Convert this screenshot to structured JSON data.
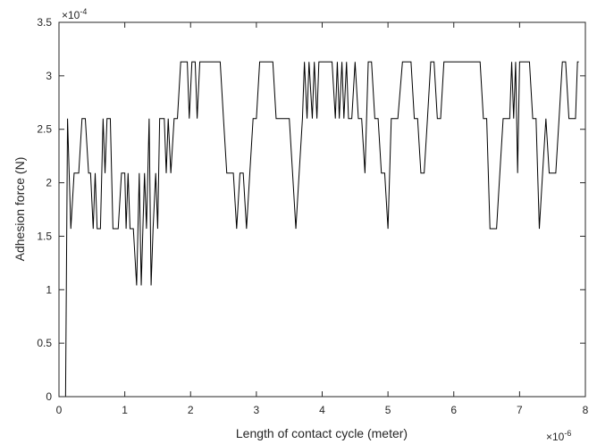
{
  "chart_data": {
    "type": "line",
    "xlabel": "Length of contact cycle (meter)",
    "ylabel": "Adhesion force (N)",
    "x_multiplier": "×10",
    "x_exponent": "-6",
    "y_multiplier": "×10",
    "y_exponent": "-4",
    "xlim": [
      0,
      8
    ],
    "ylim": [
      0,
      3.5
    ],
    "x_ticks": [
      0,
      1,
      2,
      3,
      4,
      5,
      6,
      7,
      8
    ],
    "y_ticks": [
      0,
      0.5,
      1,
      1.5,
      2,
      2.5,
      3,
      3.5
    ],
    "x_tick_labels": [
      "0",
      "1",
      "2",
      "3",
      "4",
      "5",
      "6",
      "7",
      "8"
    ],
    "y_tick_labels": [
      "0",
      "0.5",
      "1",
      "1.5",
      "2",
      "2.5",
      "3",
      "3.5"
    ],
    "grid": false,
    "line_color": "#000000",
    "series": [
      {
        "values": [
          [
            0.1,
            0
          ],
          [
            0.13,
            2.6
          ],
          [
            0.18,
            1.57
          ],
          [
            0.23,
            2.09
          ],
          [
            0.3,
            2.09
          ],
          [
            0.35,
            2.6
          ],
          [
            0.4,
            2.6
          ],
          [
            0.45,
            2.09
          ],
          [
            0.48,
            2.09
          ],
          [
            0.52,
            1.57
          ],
          [
            0.55,
            2.09
          ],
          [
            0.58,
            1.57
          ],
          [
            0.63,
            1.57
          ],
          [
            0.67,
            2.6
          ],
          [
            0.7,
            2.09
          ],
          [
            0.73,
            2.6
          ],
          [
            0.78,
            2.6
          ],
          [
            0.82,
            1.57
          ],
          [
            0.9,
            1.57
          ],
          [
            0.95,
            2.09
          ],
          [
            1.0,
            2.09
          ],
          [
            1.02,
            1.57
          ],
          [
            1.05,
            2.09
          ],
          [
            1.08,
            1.57
          ],
          [
            1.13,
            1.57
          ],
          [
            1.18,
            1.04
          ],
          [
            1.22,
            2.09
          ],
          [
            1.25,
            1.04
          ],
          [
            1.3,
            2.09
          ],
          [
            1.33,
            1.57
          ],
          [
            1.37,
            2.6
          ],
          [
            1.4,
            1.04
          ],
          [
            1.43,
            1.57
          ],
          [
            1.47,
            2.09
          ],
          [
            1.5,
            1.57
          ],
          [
            1.53,
            2.6
          ],
          [
            1.6,
            2.6
          ],
          [
            1.63,
            2.09
          ],
          [
            1.66,
            2.6
          ],
          [
            1.7,
            2.09
          ],
          [
            1.75,
            2.6
          ],
          [
            1.8,
            2.6
          ],
          [
            1.85,
            3.13
          ],
          [
            1.95,
            3.13
          ],
          [
            1.98,
            2.6
          ],
          [
            2.02,
            3.13
          ],
          [
            2.07,
            3.13
          ],
          [
            2.1,
            2.6
          ],
          [
            2.14,
            3.13
          ],
          [
            2.45,
            3.13
          ],
          [
            2.5,
            2.6
          ],
          [
            2.55,
            2.09
          ],
          [
            2.65,
            2.09
          ],
          [
            2.7,
            1.57
          ],
          [
            2.75,
            2.09
          ],
          [
            2.8,
            2.09
          ],
          [
            2.85,
            1.57
          ],
          [
            2.9,
            2.09
          ],
          [
            2.95,
            2.6
          ],
          [
            3.0,
            2.6
          ],
          [
            3.05,
            3.13
          ],
          [
            3.25,
            3.13
          ],
          [
            3.3,
            2.6
          ],
          [
            3.5,
            2.6
          ],
          [
            3.55,
            2.09
          ],
          [
            3.6,
            1.57
          ],
          [
            3.65,
            2.09
          ],
          [
            3.7,
            2.6
          ],
          [
            3.73,
            3.13
          ],
          [
            3.77,
            2.6
          ],
          [
            3.8,
            3.13
          ],
          [
            3.85,
            2.6
          ],
          [
            3.88,
            3.13
          ],
          [
            3.92,
            2.6
          ],
          [
            3.95,
            3.13
          ],
          [
            4.15,
            3.13
          ],
          [
            4.2,
            2.6
          ],
          [
            4.23,
            3.13
          ],
          [
            4.26,
            2.6
          ],
          [
            4.3,
            3.13
          ],
          [
            4.33,
            2.6
          ],
          [
            4.37,
            3.13
          ],
          [
            4.4,
            2.6
          ],
          [
            4.45,
            2.6
          ],
          [
            4.5,
            3.13
          ],
          [
            4.55,
            2.6
          ],
          [
            4.6,
            2.6
          ],
          [
            4.65,
            2.09
          ],
          [
            4.7,
            3.13
          ],
          [
            4.75,
            3.13
          ],
          [
            4.8,
            2.6
          ],
          [
            4.85,
            2.6
          ],
          [
            4.9,
            2.09
          ],
          [
            4.95,
            2.09
          ],
          [
            5.0,
            1.57
          ],
          [
            5.05,
            2.6
          ],
          [
            5.15,
            2.6
          ],
          [
            5.22,
            3.13
          ],
          [
            5.35,
            3.13
          ],
          [
            5.4,
            2.6
          ],
          [
            5.45,
            2.6
          ],
          [
            5.5,
            2.09
          ],
          [
            5.55,
            2.09
          ],
          [
            5.6,
            2.6
          ],
          [
            5.65,
            3.13
          ],
          [
            5.7,
            3.13
          ],
          [
            5.75,
            2.6
          ],
          [
            5.8,
            2.6
          ],
          [
            5.85,
            3.13
          ],
          [
            6.4,
            3.13
          ],
          [
            6.45,
            2.6
          ],
          [
            6.5,
            2.6
          ],
          [
            6.55,
            1.57
          ],
          [
            6.65,
            1.57
          ],
          [
            6.7,
            2.09
          ],
          [
            6.75,
            2.6
          ],
          [
            6.85,
            2.6
          ],
          [
            6.88,
            3.13
          ],
          [
            6.91,
            2.6
          ],
          [
            6.94,
            3.13
          ],
          [
            6.97,
            2.09
          ],
          [
            7.0,
            3.13
          ],
          [
            7.15,
            3.13
          ],
          [
            7.2,
            2.6
          ],
          [
            7.25,
            2.6
          ],
          [
            7.3,
            1.57
          ],
          [
            7.35,
            2.09
          ],
          [
            7.4,
            2.6
          ],
          [
            7.45,
            2.09
          ],
          [
            7.55,
            2.09
          ],
          [
            7.6,
            2.6
          ],
          [
            7.65,
            3.13
          ],
          [
            7.7,
            3.13
          ],
          [
            7.75,
            2.6
          ],
          [
            7.85,
            2.6
          ],
          [
            7.88,
            3.13
          ],
          [
            7.9,
            3.13
          ]
        ]
      }
    ]
  }
}
